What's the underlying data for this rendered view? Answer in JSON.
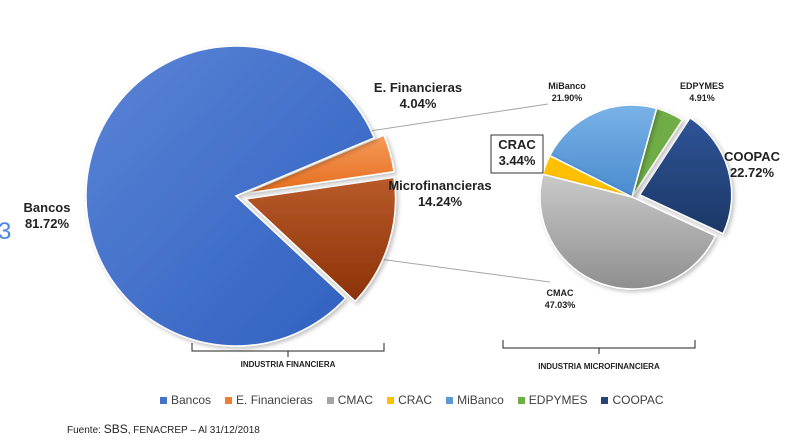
{
  "chart_data": [
    {
      "type": "pie",
      "id": "industria-financiera",
      "caption": "INDUSTRIA FINANCIERA",
      "slices": [
        {
          "label": "Bancos",
          "value": 81.72,
          "display": "81.72%",
          "color": "#4472C4"
        },
        {
          "label": "E. Financieras",
          "value": 4.04,
          "display": "4.04%",
          "color": "#ED7D31",
          "exploded": true
        },
        {
          "label": "Microfinancieras",
          "value": 14.24,
          "display": "14.24%",
          "color": "#A5410A",
          "exploded": true
        }
      ]
    },
    {
      "type": "pie",
      "id": "industria-microfinanciera",
      "caption": "INDUSTRIA MICROFINANCIERA",
      "slices": [
        {
          "label": "CMAC",
          "value": 47.03,
          "display": "47.03%",
          "color": "#A5A5A5"
        },
        {
          "label": "CRAC",
          "value": 3.44,
          "display": "3.44%",
          "color": "#FFC000"
        },
        {
          "label": "MiBanco",
          "value": 21.9,
          "display": "21.90%",
          "color": "#5B9BD5"
        },
        {
          "label": "EDPYMES",
          "value": 4.91,
          "display": "4.91%",
          "color": "#70AD47"
        },
        {
          "label": "COOPAC",
          "value": 22.72,
          "display": "22.72%",
          "color": "#264478",
          "exploded": true
        }
      ]
    }
  ],
  "legend": [
    {
      "label": "Bancos",
      "color": "#4472C4"
    },
    {
      "label": "E. Financieras",
      "color": "#ED7D31"
    },
    {
      "label": "CMAC",
      "color": "#A5A5A5"
    },
    {
      "label": "CRAC",
      "color": "#FFC000"
    },
    {
      "label": "MiBanco",
      "color": "#5B9BD5"
    },
    {
      "label": "EDPYMES",
      "color": "#70AD47"
    },
    {
      "label": "COOPAC",
      "color": "#264478"
    }
  ],
  "source": {
    "prefix": "Fuente: ",
    "sbs": "SBS",
    "rest": ", FENACREP – Al 31/12/2018"
  },
  "edge_glyph": "3"
}
